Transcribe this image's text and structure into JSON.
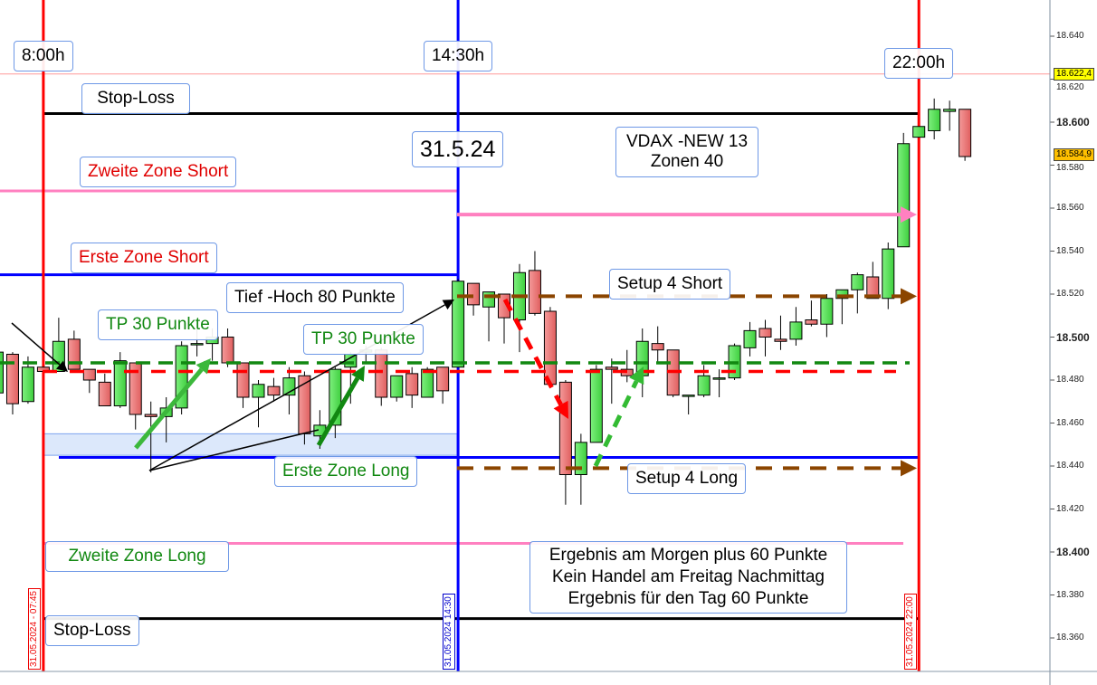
{
  "chart_data": {
    "type": "candlestick",
    "instrument_note": "",
    "y_axis": {
      "ylim": [
        18352,
        18657
      ],
      "ticks": [
        "18.640",
        "18.620",
        "18.600",
        "18.580",
        "18.560",
        "18.540",
        "18.520",
        "18.500",
        "18.480",
        "18.460",
        "18.440",
        "18.420",
        "18.400",
        "18.380",
        "18.360"
      ],
      "tick_values": [
        18640,
        18620,
        18600,
        18580,
        18560,
        18540,
        18520,
        18500,
        18480,
        18460,
        18440,
        18420,
        18400,
        18380,
        18360
      ],
      "bold_ticks": [
        "18.600",
        "18.500",
        "18.400"
      ]
    },
    "price_tags": [
      {
        "label": "18.622,4",
        "value": 18622.4,
        "color": "#ffff00"
      },
      {
        "label": "18.584,9",
        "value": 18584.9,
        "color": "#ffc000"
      }
    ],
    "candles_ohlc": [
      [
        18474,
        18495,
        18472,
        18493
      ],
      [
        18492,
        18493,
        18464,
        18469
      ],
      [
        18470,
        18491,
        18469,
        18486
      ],
      [
        18486,
        18486,
        18484,
        18484
      ],
      [
        18484,
        18509,
        18484,
        18498
      ],
      [
        18499,
        18503,
        18485,
        18485
      ],
      [
        18485,
        18485,
        18474,
        18480
      ],
      [
        18479,
        18483,
        18468,
        18468
      ],
      [
        18468,
        18493,
        18467,
        18489
      ],
      [
        18488,
        18488,
        18457,
        18464
      ],
      [
        18464,
        18470,
        18437,
        18463
      ],
      [
        18463,
        18472,
        18451,
        18467
      ],
      [
        18467,
        18498,
        18464,
        18496
      ],
      [
        18497,
        18505,
        18491,
        18497
      ],
      [
        18497,
        18504,
        18489,
        18500
      ],
      [
        18500,
        18504,
        18486,
        18488
      ],
      [
        18488,
        18488,
        18467,
        18472
      ],
      [
        18472,
        18480,
        18458,
        18478
      ],
      [
        18477,
        18481,
        18470,
        18473
      ],
      [
        18473,
        18486,
        18464,
        18481
      ],
      [
        18482,
        18484,
        18450,
        18455
      ],
      [
        18454,
        18466,
        18448,
        18459
      ],
      [
        18459,
        18486,
        18453,
        18485
      ],
      [
        18486,
        18493,
        18469,
        18492
      ],
      [
        18493,
        18496,
        18488,
        18494
      ],
      [
        18494,
        18495,
        18468,
        18472
      ],
      [
        18472,
        18482,
        18470,
        18482
      ],
      [
        18483,
        18486,
        18467,
        18473
      ],
      [
        18472,
        18486,
        18472,
        18485
      ],
      [
        18486,
        18486,
        18469,
        18475
      ],
      [
        18486,
        18527,
        18486,
        18526
      ],
      [
        18525,
        18525,
        18510,
        18515
      ],
      [
        18514,
        18521,
        18498,
        18521
      ],
      [
        18520,
        18520,
        18497,
        18509
      ],
      [
        18508,
        18534,
        18493,
        18530
      ],
      [
        18531,
        18540,
        18510,
        18511
      ],
      [
        18512,
        18514,
        18477,
        18478
      ],
      [
        18479,
        18480,
        18422,
        18436
      ],
      [
        18436,
        18455,
        18422,
        18451
      ],
      [
        18451,
        18487,
        18451,
        18485
      ],
      [
        18486,
        18490,
        18469,
        18485
      ],
      [
        18485,
        18494,
        18479,
        18482
      ],
      [
        18482,
        18504,
        18472,
        18498
      ],
      [
        18497,
        18505,
        18488,
        18494
      ],
      [
        18494,
        18494,
        18472,
        18473
      ],
      [
        18473,
        18473,
        18464,
        18473
      ],
      [
        18473,
        18487,
        18472,
        18482
      ],
      [
        18481,
        18485,
        18472,
        18481
      ],
      [
        18481,
        18497,
        18480,
        18496
      ],
      [
        18495,
        18507,
        18491,
        18503
      ],
      [
        18504,
        18508,
        18491,
        18500
      ],
      [
        18499,
        18510,
        18494,
        18498
      ],
      [
        18499,
        18514,
        18496,
        18507
      ],
      [
        18508,
        18517,
        18505,
        18506
      ],
      [
        18506,
        18520,
        18500,
        18518
      ],
      [
        18518,
        18522,
        18506,
        18522
      ],
      [
        18522,
        18530,
        18511,
        18529
      ],
      [
        18528,
        18535,
        18518,
        18518
      ],
      [
        18518,
        18544,
        18513,
        18541
      ],
      [
        18542,
        18595,
        18542,
        18590
      ],
      [
        18593,
        18598,
        18593,
        18598
      ],
      [
        18596,
        18611,
        18592,
        18606
      ],
      [
        18605,
        18610,
        18596,
        18606
      ],
      [
        18606,
        18606,
        18582,
        18584
      ]
    ],
    "colors": {
      "up": "#55dd55",
      "down": "#ee7474",
      "outline": "#000000"
    },
    "time_markers": [
      {
        "label": "31.05.2024 - 07:45",
        "candle": 3,
        "color": "#ff0000"
      },
      {
        "label": "31.05.2024 14:30",
        "candle": 30,
        "color": "#0000ff"
      },
      {
        "label": "31.05.2024 22:00",
        "candle": 60,
        "color": "#ff0000"
      }
    ],
    "levels": {
      "last_price_line": {
        "value": 18622.4,
        "color": "#ff9999"
      },
      "stop_loss_top": {
        "value": 18604,
        "color": "#000000"
      },
      "zweite_zone_short": {
        "value": 18568,
        "color": "#ff80c0"
      },
      "pink_arrow": {
        "value": 18557,
        "color": "#ff80c0"
      },
      "erste_zone_short": {
        "value": 18529,
        "color": "#0000ff"
      },
      "setup_short": {
        "value": 18519,
        "color": "#8b4500"
      },
      "green_dashed": {
        "value": 18488,
        "color": "#118811"
      },
      "red_dashed": {
        "value": 18484,
        "color": "#ff0000"
      },
      "erste_zone_long_band": {
        "from": 18445,
        "to": 18455,
        "color": "#dce8fb"
      },
      "erste_zone_long": {
        "value": 18444,
        "color": "#0000ff"
      },
      "setup_long": {
        "value": 18439,
        "color": "#8b4500"
      },
      "zweite_zone_long": {
        "value": 18404,
        "color": "#ff80c0"
      },
      "stop_loss_bottom": {
        "value": 18369,
        "color": "#000000"
      }
    }
  },
  "annotations": {
    "time_8": "8:00h",
    "time_1430": "14:30h",
    "time_22": "22:00h",
    "stop_loss_top": "Stop-Loss",
    "date": "31.5.24",
    "vdax_line1": "VDAX -NEW 13",
    "vdax_line2": "Zonen 40",
    "zweite_zone_short": "Zweite Zone Short",
    "erste_zone_short": "Erste Zone Short",
    "tief_hoch": "Tief -Hoch 80 Punkte",
    "tp1": "TP 30 Punkte",
    "tp2": "TP 30 Punkte",
    "setup_short": "Setup 4 Short",
    "erste_zone_long": "Erste Zone Long",
    "setup_long": "Setup 4 Long",
    "zweite_zone_long": "Zweite Zone Long",
    "result_line1": "Ergebnis am Morgen plus 60 Punkte",
    "result_line2": "Kein Handel am Freitag Nachmittag",
    "result_line3": "Ergebnis für den Tag 60 Punkte",
    "stop_loss_bottom": "Stop-Loss"
  }
}
